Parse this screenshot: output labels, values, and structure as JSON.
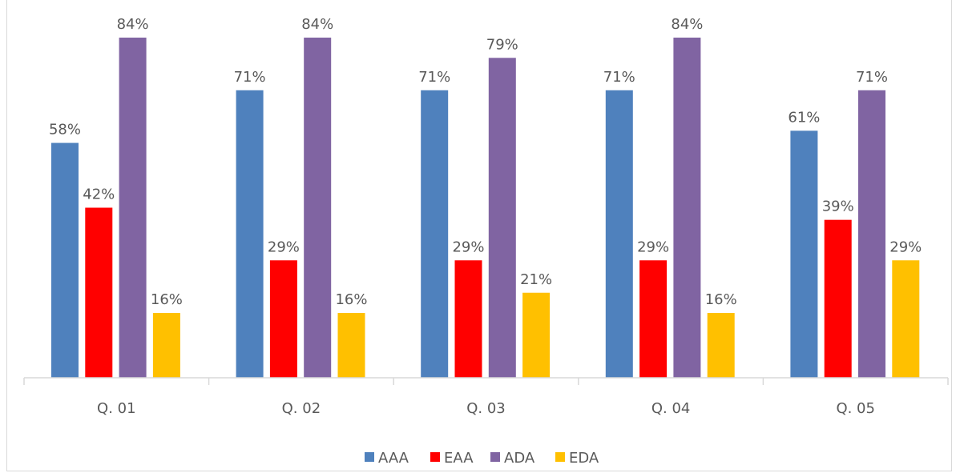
{
  "chart_data": {
    "type": "bar",
    "categories": [
      "Q. 01",
      "Q. 02",
      "Q. 03",
      "Q. 04",
      "Q. 05"
    ],
    "series": [
      {
        "name": "AAA",
        "color": "#4f81bd",
        "values": [
          58,
          71,
          71,
          71,
          61
        ]
      },
      {
        "name": "EAA",
        "color": "#ff0000",
        "values": [
          42,
          29,
          29,
          29,
          39
        ]
      },
      {
        "name": "ADA",
        "color": "#8064a2",
        "values": [
          84,
          84,
          79,
          84,
          71
        ]
      },
      {
        "name": "EDA",
        "color": "#ffc000",
        "values": [
          16,
          16,
          21,
          16,
          29
        ]
      }
    ],
    "value_suffix": "%",
    "ylim": [
      0,
      84
    ],
    "legend_position": "bottom",
    "grid": false
  }
}
